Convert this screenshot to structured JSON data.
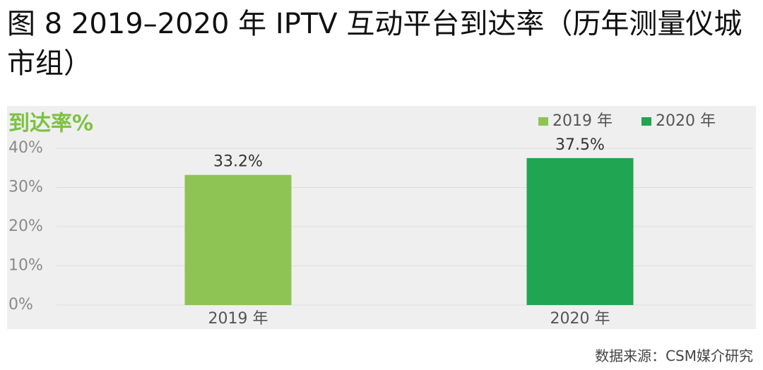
{
  "chart_data": {
    "type": "bar",
    "title": "图 8 2019–2020 年 IPTV 互动平台到达率（历年测量仪城市组）",
    "y_label": "到达率%",
    "categories": [
      "2019 年",
      "2020 年"
    ],
    "values": [
      33.2,
      37.5
    ],
    "value_labels": [
      "33.2%",
      "37.5%"
    ],
    "colors": [
      "#8dc454",
      "#20a552"
    ],
    "ylim": [
      0,
      40
    ],
    "yticks": [
      {
        "value": 0,
        "label": "0%"
      },
      {
        "value": 10,
        "label": "10%"
      },
      {
        "value": 20,
        "label": "20%"
      },
      {
        "value": 30,
        "label": "30%"
      },
      {
        "value": 40,
        "label": "40%"
      }
    ],
    "grid": true,
    "legend": "top-right",
    "source": "数据来源：CSM媒介研究"
  }
}
